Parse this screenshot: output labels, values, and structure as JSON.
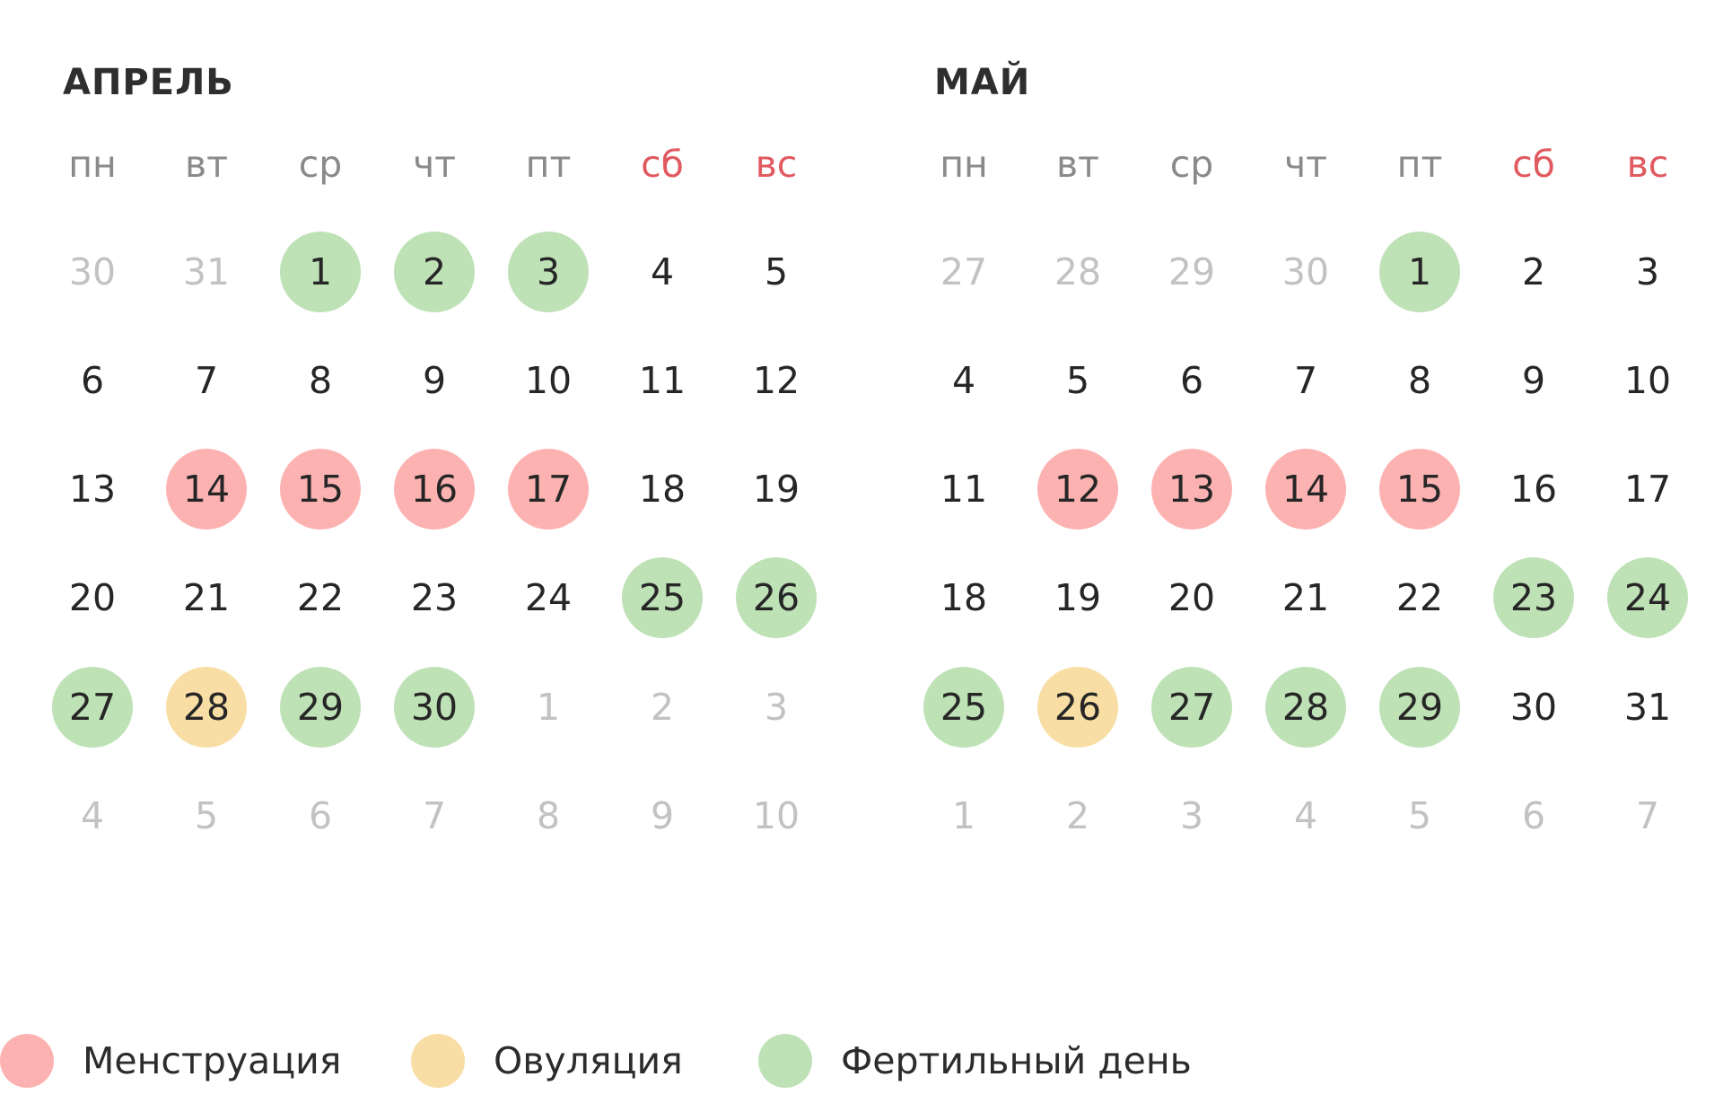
{
  "colors": {
    "menstruation": "#fdb2b2",
    "ovulation": "#f8dea4",
    "fertile": "#bee1b6",
    "weekend_label": "#e05a5f",
    "other_month_day": "#c2c2c2"
  },
  "weekdays": [
    {
      "label": "пн",
      "weekend": false
    },
    {
      "label": "вт",
      "weekend": false
    },
    {
      "label": "ср",
      "weekend": false
    },
    {
      "label": "чт",
      "weekend": false
    },
    {
      "label": "пт",
      "weekend": false
    },
    {
      "label": "сб",
      "weekend": true
    },
    {
      "label": "вс",
      "weekend": true
    }
  ],
  "months": [
    {
      "title": "АПРЕЛЬ",
      "weeks": [
        [
          {
            "day": "30",
            "state": "other"
          },
          {
            "day": "31",
            "state": "other"
          },
          {
            "day": "1",
            "state": "fertile"
          },
          {
            "day": "2",
            "state": "fertile"
          },
          {
            "day": "3",
            "state": "fertile"
          },
          {
            "day": "4",
            "state": "normal"
          },
          {
            "day": "5",
            "state": "normal"
          }
        ],
        [
          {
            "day": "6",
            "state": "normal"
          },
          {
            "day": "7",
            "state": "normal"
          },
          {
            "day": "8",
            "state": "normal"
          },
          {
            "day": "9",
            "state": "normal"
          },
          {
            "day": "10",
            "state": "normal"
          },
          {
            "day": "11",
            "state": "normal"
          },
          {
            "day": "12",
            "state": "normal"
          }
        ],
        [
          {
            "day": "13",
            "state": "normal"
          },
          {
            "day": "14",
            "state": "menstruation"
          },
          {
            "day": "15",
            "state": "menstruation"
          },
          {
            "day": "16",
            "state": "menstruation"
          },
          {
            "day": "17",
            "state": "menstruation"
          },
          {
            "day": "18",
            "state": "normal"
          },
          {
            "day": "19",
            "state": "normal"
          }
        ],
        [
          {
            "day": "20",
            "state": "normal"
          },
          {
            "day": "21",
            "state": "normal"
          },
          {
            "day": "22",
            "state": "normal"
          },
          {
            "day": "23",
            "state": "normal"
          },
          {
            "day": "24",
            "state": "normal"
          },
          {
            "day": "25",
            "state": "fertile"
          },
          {
            "day": "26",
            "state": "fertile"
          }
        ],
        [
          {
            "day": "27",
            "state": "fertile"
          },
          {
            "day": "28",
            "state": "ovulation"
          },
          {
            "day": "29",
            "state": "fertile"
          },
          {
            "day": "30",
            "state": "fertile"
          },
          {
            "day": "1",
            "state": "other"
          },
          {
            "day": "2",
            "state": "other"
          },
          {
            "day": "3",
            "state": "other"
          }
        ],
        [
          {
            "day": "4",
            "state": "other"
          },
          {
            "day": "5",
            "state": "other"
          },
          {
            "day": "6",
            "state": "other"
          },
          {
            "day": "7",
            "state": "other"
          },
          {
            "day": "8",
            "state": "other"
          },
          {
            "day": "9",
            "state": "other"
          },
          {
            "day": "10",
            "state": "other"
          }
        ]
      ]
    },
    {
      "title": "МАЙ",
      "weeks": [
        [
          {
            "day": "27",
            "state": "other"
          },
          {
            "day": "28",
            "state": "other"
          },
          {
            "day": "29",
            "state": "other"
          },
          {
            "day": "30",
            "state": "other"
          },
          {
            "day": "1",
            "state": "fertile"
          },
          {
            "day": "2",
            "state": "normal"
          },
          {
            "day": "3",
            "state": "normal"
          }
        ],
        [
          {
            "day": "4",
            "state": "normal"
          },
          {
            "day": "5",
            "state": "normal"
          },
          {
            "day": "6",
            "state": "normal"
          },
          {
            "day": "7",
            "state": "normal"
          },
          {
            "day": "8",
            "state": "normal"
          },
          {
            "day": "9",
            "state": "normal"
          },
          {
            "day": "10",
            "state": "normal"
          }
        ],
        [
          {
            "day": "11",
            "state": "normal"
          },
          {
            "day": "12",
            "state": "menstruation"
          },
          {
            "day": "13",
            "state": "menstruation"
          },
          {
            "day": "14",
            "state": "menstruation"
          },
          {
            "day": "15",
            "state": "menstruation"
          },
          {
            "day": "16",
            "state": "normal"
          },
          {
            "day": "17",
            "state": "normal"
          }
        ],
        [
          {
            "day": "18",
            "state": "normal"
          },
          {
            "day": "19",
            "state": "normal"
          },
          {
            "day": "20",
            "state": "normal"
          },
          {
            "day": "21",
            "state": "normal"
          },
          {
            "day": "22",
            "state": "normal"
          },
          {
            "day": "23",
            "state": "fertile"
          },
          {
            "day": "24",
            "state": "fertile"
          }
        ],
        [
          {
            "day": "25",
            "state": "fertile"
          },
          {
            "day": "26",
            "state": "ovulation"
          },
          {
            "day": "27",
            "state": "fertile"
          },
          {
            "day": "28",
            "state": "fertile"
          },
          {
            "day": "29",
            "state": "fertile"
          },
          {
            "day": "30",
            "state": "normal"
          },
          {
            "day": "31",
            "state": "normal"
          }
        ],
        [
          {
            "day": "1",
            "state": "other"
          },
          {
            "day": "2",
            "state": "other"
          },
          {
            "day": "3",
            "state": "other"
          },
          {
            "day": "4",
            "state": "other"
          },
          {
            "day": "5",
            "state": "other"
          },
          {
            "day": "6",
            "state": "other"
          },
          {
            "day": "7",
            "state": "other"
          }
        ]
      ]
    }
  ],
  "legend": [
    {
      "label": "Менструация",
      "state": "menstruation"
    },
    {
      "label": "Овуляция",
      "state": "ovulation"
    },
    {
      "label": "Фертильный день",
      "state": "fertile"
    }
  ]
}
